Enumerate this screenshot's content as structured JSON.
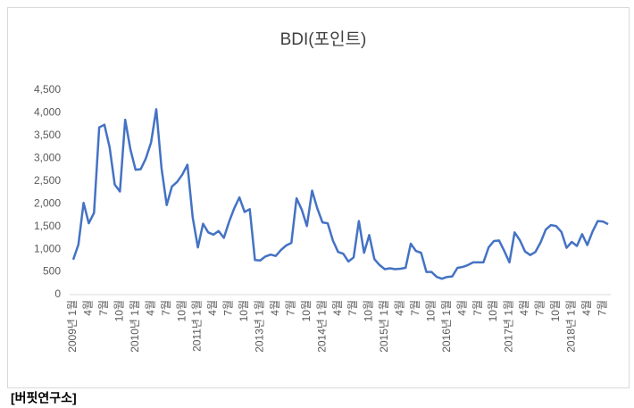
{
  "chart_data": {
    "type": "line",
    "title": "BDI(포인트)",
    "source": "[버핏연구소]",
    "categories": [
      "2009년 1월",
      null,
      null,
      "4월",
      null,
      null,
      "7월",
      null,
      null,
      "10월",
      null,
      null,
      "2010년 1월",
      null,
      null,
      "4월",
      null,
      null,
      "7월",
      null,
      null,
      "10월",
      null,
      null,
      "2011년 1월",
      null,
      null,
      "4월",
      null,
      null,
      "7월",
      null,
      null,
      "10월",
      null,
      null,
      "2013년 1월",
      null,
      null,
      "4월",
      null,
      null,
      "7월",
      null,
      null,
      "10월",
      null,
      null,
      "2014년 1월",
      null,
      null,
      "4월",
      null,
      null,
      "7월",
      null,
      null,
      "10월",
      null,
      null,
      "2015년 1월",
      null,
      null,
      "4월",
      null,
      null,
      "7월",
      null,
      null,
      "10월",
      null,
      null,
      "2016년 1월",
      null,
      null,
      "4월",
      null,
      null,
      "7월",
      null,
      null,
      "10월",
      null,
      null,
      "2017년 1월",
      null,
      null,
      "4월",
      null,
      null,
      "7월",
      null,
      null,
      "10월",
      null,
      null,
      "2018년 1월",
      null,
      null,
      "4월",
      null,
      null,
      "7월",
      null
    ],
    "series": [
      {
        "name": "BDI",
        "color": "#4472c4",
        "values": [
          770,
          1100,
          2020,
          1570,
          1800,
          3680,
          3740,
          3250,
          2420,
          2270,
          3850,
          3200,
          2750,
          2760,
          3000,
          3350,
          4080,
          2780,
          1970,
          2380,
          2480,
          2640,
          2860,
          1700,
          1040,
          1560,
          1370,
          1320,
          1400,
          1250,
          1600,
          1900,
          2140,
          1820,
          1880,
          760,
          750,
          840,
          880,
          850,
          980,
          1080,
          1140,
          2120,
          1870,
          1510,
          2290,
          1900,
          1590,
          1570,
          1190,
          940,
          900,
          730,
          820,
          1620,
          920,
          1310,
          780,
          650,
          560,
          580,
          560,
          570,
          590,
          1120,
          960,
          920,
          500,
          500,
          390,
          350,
          390,
          400,
          590,
          610,
          650,
          710,
          710,
          710,
          1040,
          1180,
          1190,
          960,
          710,
          1370,
          1200,
          950,
          870,
          940,
          1150,
          1430,
          1530,
          1510,
          1380,
          1030,
          1160,
          1070,
          1330,
          1090,
          1390,
          1620,
          1610,
          1550
        ]
      }
    ],
    "ylim": [
      0,
      4500
    ],
    "yticks": [
      0,
      {
        "value": 500,
        "label": "500"
      },
      {
        "value": 1000,
        "label": "1,000"
      },
      {
        "value": 1500,
        "label": "1,500"
      },
      {
        "value": 2000,
        "label": "2,000"
      },
      {
        "value": 2500,
        "label": "2,500"
      },
      {
        "value": 3000,
        "label": "3,000"
      },
      {
        "value": 3500,
        "label": "3,500"
      },
      {
        "value": 4000,
        "label": "4,000"
      },
      {
        "value": 4500,
        "label": "4,500"
      }
    ],
    "grid": false
  }
}
